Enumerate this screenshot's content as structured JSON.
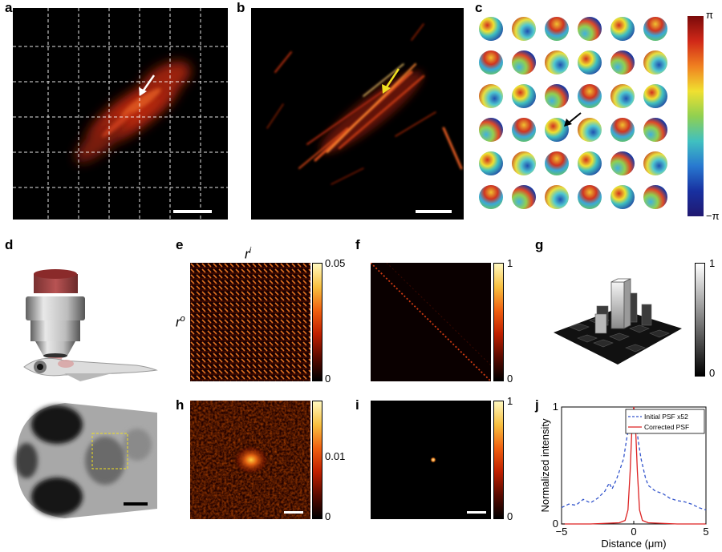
{
  "panel_labels": [
    "a",
    "b",
    "c",
    "d",
    "e",
    "f",
    "g",
    "h",
    "i",
    "j"
  ],
  "colors": {
    "hot_low": "#000000",
    "hot_mid": "#cc1a00",
    "hot_high": "#ffe680",
    "psf_initial": "#3355cc",
    "psf_corrected": "#dd2222"
  },
  "panel_c": {
    "colorbar_top": "π",
    "colorbar_bottom": "−π"
  },
  "panel_e": {
    "x_label": "r",
    "x_label_sup": "i",
    "y_label": "r",
    "y_label_sup": "o",
    "cbar_max": "0.05",
    "cbar_min": "0"
  },
  "panel_f": {
    "cbar_max": "1",
    "cbar_min": "0"
  },
  "panel_g": {
    "cbar_max": "1",
    "cbar_min": "0"
  },
  "panel_h": {
    "cbar_max": "",
    "cbar_mid": "0.01",
    "cbar_min": "0"
  },
  "panel_i": {
    "cbar_max": "1",
    "cbar_min": "0"
  },
  "chart_data": {
    "type": "line",
    "xlabel": "Distance (μm)",
    "ylabel": "Normalized intensity",
    "xlim": [
      -5,
      5
    ],
    "ylim": [
      0,
      1
    ],
    "xticks": [
      "−5",
      "0",
      "5"
    ],
    "yticks": [
      "0",
      "1"
    ],
    "legend_position": "top-right",
    "series": [
      {
        "name": "Initial PSF x52",
        "style": "dashed",
        "x": [
          -5,
          -4.5,
          -4,
          -3.5,
          -3,
          -2.5,
          -2,
          -1.7,
          -1.5,
          -1.2,
          -1,
          -0.7,
          -0.5,
          -0.3,
          -0.1,
          0,
          0.1,
          0.3,
          0.5,
          0.8,
          1,
          1.5,
          2,
          2.5,
          3,
          3.5,
          4,
          4.5,
          5
        ],
        "y": [
          0.14,
          0.17,
          0.16,
          0.21,
          0.18,
          0.22,
          0.28,
          0.35,
          0.3,
          0.38,
          0.45,
          0.56,
          0.72,
          0.86,
          0.96,
          0.99,
          0.94,
          0.72,
          0.56,
          0.4,
          0.33,
          0.28,
          0.26,
          0.22,
          0.2,
          0.19,
          0.17,
          0.14,
          0.12
        ]
      },
      {
        "name": "Corrected PSF",
        "style": "solid",
        "x": [
          -5,
          -3,
          -1,
          -0.6,
          -0.4,
          -0.25,
          -0.1,
          0,
          0.1,
          0.25,
          0.4,
          0.6,
          1,
          3,
          5
        ],
        "y": [
          0,
          0,
          0.01,
          0.03,
          0.12,
          0.45,
          0.9,
          1.0,
          0.9,
          0.45,
          0.12,
          0.03,
          0.01,
          0,
          0
        ]
      }
    ]
  }
}
